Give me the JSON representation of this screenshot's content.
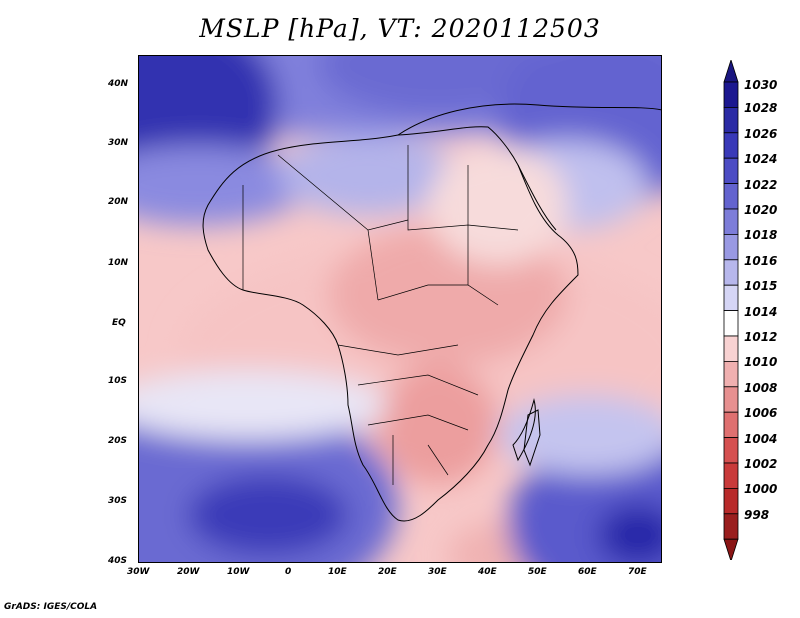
{
  "title": "MSLP [hPa], VT: 2020112503",
  "footer": "GrADS: IGES/COLA",
  "lat_labels": [
    "40N",
    "30N",
    "20N",
    "10N",
    "EQ",
    "10S",
    "20S",
    "30S",
    "40S"
  ],
  "lon_labels": [
    "30W",
    "20W",
    "10W",
    "0",
    "10E",
    "20E",
    "30E",
    "40E",
    "50E",
    "60E",
    "70E"
  ],
  "colorbar": {
    "labels": [
      "1030",
      "1028",
      "1026",
      "1024",
      "1022",
      "1020",
      "1018",
      "1016",
      "1015",
      "1014",
      "1012",
      "1010",
      "1008",
      "1006",
      "1004",
      "1002",
      "1000",
      "998"
    ],
    "colors": [
      "#1c1890",
      "#2b2ba5",
      "#3939b8",
      "#4c4cc4",
      "#6363cf",
      "#7d7dd9",
      "#9999e3",
      "#b7b7ec",
      "#d5d5f5",
      "#ffffff",
      "#f8d2d2",
      "#f0b0b0",
      "#e79090",
      "#df7070",
      "#d55050",
      "#c93a3a",
      "#b82a2a",
      "#9a1e1e"
    ],
    "top_arrow_color": "#1a1680",
    "bottom_arrow_color": "#8a1515"
  },
  "map_colors": {
    "ocean_high": "#3c3cbc",
    "ocean_mid": "#7070d6",
    "neutral": "#f3f0f6",
    "land_low": "#f3b9b9",
    "land_lower": "#e89b9b"
  }
}
